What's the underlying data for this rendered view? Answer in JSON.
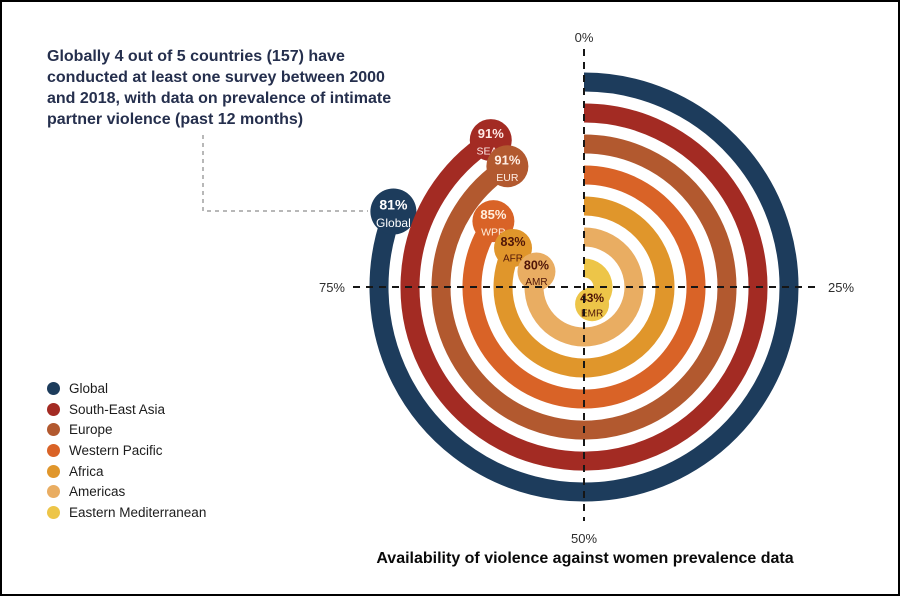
{
  "header": {
    "title_lines": [
      "Globally 4 out of 5 countries (157) have",
      "conducted at least one survey between 2000",
      "and 2018, with data on prevalence of intimate",
      "partner violence (past 12 months)"
    ]
  },
  "chart_data": {
    "type": "radial-bar",
    "title": "Availability of violence against women prevalence data",
    "unit": "%",
    "direction": "clockwise",
    "start_angle_deg": 0,
    "axis_range": [
      0,
      100
    ],
    "axis_ticks": [
      {
        "label": "0%",
        "position": "top"
      },
      {
        "label": "25%",
        "position": "right"
      },
      {
        "label": "50%",
        "position": "bottom"
      },
      {
        "label": "75%",
        "position": "left"
      }
    ],
    "series": [
      {
        "name": "Global",
        "badge_label": "Global",
        "value": 81,
        "color": "#1d3c5c",
        "text_color": "#ffffff"
      },
      {
        "name": "South-East Asia",
        "badge_label": "SEAR",
        "value": 91,
        "color": "#a32b23",
        "text_color": "#ffe9e6"
      },
      {
        "name": "Europe",
        "badge_label": "EUR",
        "value": 91,
        "color": "#b2592f",
        "text_color": "#ffeee4"
      },
      {
        "name": "Western Pacific",
        "badge_label": "WPR",
        "value": 85,
        "color": "#d96327",
        "text_color": "#ffeedd"
      },
      {
        "name": "Africa",
        "badge_label": "AFR",
        "value": 83,
        "color": "#e0962b",
        "text_color": "#4f1508"
      },
      {
        "name": "Americas",
        "badge_label": "AMR",
        "value": 80,
        "color": "#e9ad62",
        "text_color": "#4f1508"
      },
      {
        "name": "Eastern Mediterranean",
        "badge_label": "EMR",
        "value": 43,
        "color": "#edc548",
        "text_color": "#4f1508"
      }
    ]
  }
}
